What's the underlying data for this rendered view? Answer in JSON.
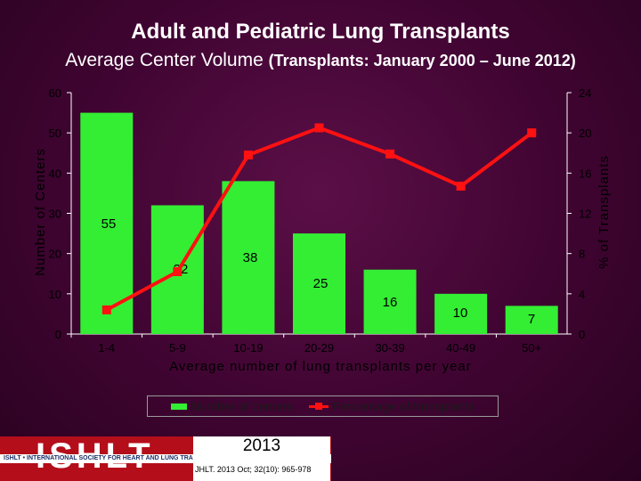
{
  "header": {
    "title": "Adult and Pediatric Lung Transplants",
    "subtitle_main": "Average Center Volume",
    "subtitle_paren": "(Transplants: January  2000 – June 2012)"
  },
  "chart_data": {
    "type": "bar",
    "categories": [
      "1-4",
      "5-9",
      "10-19",
      "20-29",
      "30-39",
      "40-49",
      "50+"
    ],
    "series": [
      {
        "name": "Number of centers",
        "type": "bar",
        "axis": "left",
        "values": [
          55,
          32,
          38,
          25,
          16,
          10,
          7
        ],
        "color": "#33ee33"
      },
      {
        "name": "Percentage of transplants",
        "type": "line",
        "axis": "right",
        "values": [
          2.4,
          6.2,
          17.8,
          20.5,
          17.9,
          14.7,
          20.0
        ],
        "color": "#ff1111"
      }
    ],
    "data_labels": [
      "55",
      "32",
      "38",
      "25",
      "16",
      "10",
      "7"
    ],
    "xlabel": "Average number of lung transplants per year",
    "ylabel": "Number of Centers",
    "y2label": "% of Transplants",
    "ylim": [
      0,
      60
    ],
    "y2lim": [
      0,
      24
    ],
    "yticks": [
      0,
      10,
      20,
      30,
      40,
      50,
      60
    ],
    "y2ticks": [
      0,
      4,
      8,
      12,
      16,
      20,
      24
    ],
    "grid": false,
    "legend_position": "bottom"
  },
  "legend": {
    "bar_label": "Number of centers",
    "line_label": "Percentage of transplants"
  },
  "footer": {
    "logo_text": "ISHLT",
    "banner_text": "ISHLT • INTERNATIONAL SOCIETY FOR HEART AND LUNG TRANSPLANTATION",
    "year": "2013",
    "citation": "JHLT. 2013 Oct; 32(10): 965-978"
  }
}
